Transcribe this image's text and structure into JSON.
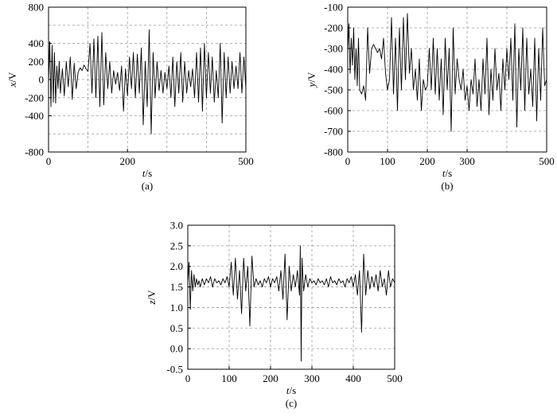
{
  "chart_data": [
    {
      "type": "line",
      "panel_label": "(a)",
      "xlabel": "t",
      "xunit": "/s",
      "ylabel": "x",
      "yunit": "/V",
      "xlim": [
        0,
        500
      ],
      "ylim": [
        -800,
        800
      ],
      "x_ticks": [
        0,
        200,
        500
      ],
      "y_ticks": [
        -800,
        -400,
        -200,
        0,
        200,
        400,
        800
      ],
      "x_grid": [
        100,
        200,
        300,
        400
      ],
      "y_grid": [
        -600,
        -400,
        -200,
        0,
        200,
        400,
        600
      ],
      "grid": true,
      "series": [
        {
          "x": [
            0,
            3,
            6,
            9,
            12,
            15,
            18,
            21,
            24,
            27,
            30,
            35,
            40,
            45,
            50,
            55,
            60,
            65,
            70,
            75,
            80,
            85,
            90,
            95,
            100,
            105,
            110,
            115,
            120,
            125,
            130,
            135,
            140,
            145,
            150,
            155,
            160,
            165,
            170,
            175,
            180,
            185,
            190,
            195,
            200,
            205,
            210,
            215,
            220,
            225,
            230,
            235,
            240,
            245,
            250,
            255,
            260,
            265,
            270,
            275,
            280,
            285,
            290,
            295,
            300,
            305,
            310,
            315,
            320,
            325,
            330,
            335,
            340,
            345,
            350,
            355,
            360,
            365,
            370,
            375,
            380,
            385,
            390,
            395,
            400,
            405,
            410,
            415,
            420,
            425,
            430,
            435,
            440,
            445,
            450,
            455,
            460,
            465,
            470,
            475,
            480,
            485,
            490,
            495,
            500
          ],
          "y": [
            -20,
            420,
            -300,
            380,
            -250,
            300,
            -260,
            150,
            -100,
            200,
            -150,
            120,
            -180,
            200,
            -80,
            250,
            -220,
            180,
            -100,
            80,
            130,
            100,
            160,
            120,
            90,
            400,
            -150,
            450,
            -200,
            480,
            -300,
            520,
            -280,
            300,
            -100,
            200,
            -150,
            100,
            -50,
            80,
            -120,
            150,
            -350,
            120,
            -180,
            250,
            -100,
            300,
            -200,
            280,
            -150,
            350,
            -500,
            200,
            -300,
            550,
            -600,
            300,
            -200,
            200,
            -120,
            100,
            -150,
            80,
            -100,
            150,
            -200,
            250,
            -300,
            200,
            -150,
            300,
            -250,
            200,
            -150,
            100,
            -80,
            120,
            -200,
            300,
            -250,
            350,
            -350,
            400,
            -200,
            300,
            -150,
            250,
            -250,
            100,
            -200,
            400,
            -480,
            300,
            -200,
            250,
            -150,
            200,
            -100,
            150,
            -100,
            300,
            -150,
            250,
            -100
          ]
        }
      ]
    },
    {
      "type": "line",
      "panel_label": "(b)",
      "xlabel": "t",
      "xunit": "/s",
      "ylabel": "y",
      "yunit": "/V",
      "xlim": [
        0,
        500
      ],
      "ylim": [
        -800,
        -100
      ],
      "x_ticks": [
        0,
        100,
        200,
        300,
        500
      ],
      "y_ticks": [
        -800,
        -700,
        -600,
        -500,
        -400,
        -300,
        -200,
        -100
      ],
      "x_grid": [
        100,
        200,
        300,
        400
      ],
      "y_grid": [
        -700,
        -600,
        -500,
        -400,
        -300,
        -200
      ],
      "grid": true,
      "series": [
        {
          "x": [
            0,
            3,
            6,
            9,
            12,
            15,
            18,
            21,
            24,
            27,
            30,
            35,
            40,
            45,
            50,
            55,
            60,
            65,
            70,
            75,
            80,
            85,
            90,
            95,
            100,
            105,
            110,
            115,
            120,
            125,
            130,
            135,
            140,
            145,
            150,
            155,
            160,
            165,
            170,
            175,
            180,
            185,
            190,
            195,
            200,
            205,
            210,
            215,
            220,
            225,
            230,
            235,
            240,
            245,
            250,
            255,
            260,
            265,
            270,
            275,
            280,
            285,
            290,
            295,
            300,
            305,
            310,
            315,
            320,
            325,
            330,
            335,
            340,
            345,
            350,
            355,
            360,
            365,
            370,
            375,
            380,
            385,
            390,
            395,
            400,
            405,
            410,
            415,
            420,
            425,
            430,
            435,
            440,
            445,
            450,
            455,
            460,
            465,
            470,
            475,
            480,
            485,
            490,
            495,
            500
          ],
          "y": [
            -320,
            -180,
            -420,
            -250,
            -380,
            -200,
            -450,
            -300,
            -480,
            -250,
            -500,
            -520,
            -480,
            -550,
            -200,
            -420,
            -300,
            -280,
            -300,
            -320,
            -300,
            -350,
            -250,
            -420,
            -500,
            -450,
            -150,
            -520,
            -250,
            -600,
            -200,
            -500,
            -150,
            -450,
            -130,
            -420,
            -300,
            -500,
            -400,
            -550,
            -350,
            -600,
            -450,
            -500,
            -480,
            -300,
            -500,
            -250,
            -520,
            -300,
            -550,
            -350,
            -620,
            -250,
            -500,
            -300,
            -700,
            -200,
            -520,
            -350,
            -450,
            -500,
            -400,
            -550,
            -480,
            -600,
            -450,
            -520,
            -350,
            -580,
            -450,
            -600,
            -350,
            -520,
            -250,
            -620,
            -400,
            -550,
            -300,
            -500,
            -420,
            -600,
            -350,
            -500,
            -300,
            -450,
            -250,
            -550,
            -180,
            -680,
            -300,
            -500,
            -200,
            -600,
            -250,
            -520,
            -400,
            -580,
            -250,
            -650,
            -300,
            -550,
            -200,
            -480,
            -450
          ]
        }
      ]
    },
    {
      "type": "line",
      "panel_label": "(c)",
      "xlabel": "t",
      "xunit": "/s",
      "ylabel": "z",
      "yunit": "/V",
      "xlim": [
        0,
        500
      ],
      "ylim": [
        -0.5,
        3.0
      ],
      "x_ticks": [
        0,
        100,
        200,
        300,
        400,
        500
      ],
      "y_ticks": [
        "-0.5",
        "0.0",
        "0.5",
        "1.0",
        "1.5",
        "2.0",
        "2.5",
        "3.0"
      ],
      "x_grid": [
        100,
        200,
        300,
        400
      ],
      "y_grid": [
        0.0,
        0.5,
        1.0,
        1.5,
        2.0,
        2.5
      ],
      "grid": true,
      "series": [
        {
          "x": [
            0,
            3,
            6,
            9,
            12,
            15,
            18,
            21,
            24,
            27,
            30,
            35,
            40,
            45,
            50,
            55,
            60,
            65,
            70,
            75,
            80,
            85,
            90,
            95,
            100,
            105,
            110,
            115,
            120,
            125,
            130,
            135,
            140,
            145,
            150,
            155,
            160,
            165,
            170,
            175,
            180,
            185,
            190,
            195,
            200,
            205,
            210,
            215,
            220,
            225,
            230,
            235,
            240,
            245,
            250,
            255,
            260,
            265,
            270,
            272,
            274,
            276,
            280,
            285,
            290,
            295,
            300,
            305,
            310,
            315,
            320,
            325,
            330,
            335,
            340,
            345,
            350,
            355,
            360,
            365,
            370,
            375,
            380,
            385,
            390,
            395,
            400,
            405,
            410,
            415,
            420,
            425,
            430,
            435,
            440,
            445,
            450,
            455,
            460,
            465,
            470,
            475,
            480,
            485,
            490,
            495,
            500
          ],
          "y": [
            1.6,
            2.1,
            0.95,
            1.9,
            1.4,
            1.8,
            1.5,
            1.7,
            1.55,
            1.65,
            1.5,
            1.7,
            1.55,
            1.7,
            1.6,
            1.75,
            1.5,
            1.7,
            1.6,
            1.65,
            1.55,
            1.7,
            1.6,
            1.75,
            1.5,
            2.1,
            1.3,
            2.2,
            1.2,
            1.9,
            0.85,
            2.2,
            1.4,
            2.0,
            0.55,
            2.25,
            1.5,
            1.7,
            1.55,
            1.65,
            1.5,
            1.7,
            1.6,
            1.75,
            1.5,
            1.7,
            1.6,
            1.75,
            1.4,
            1.9,
            1.2,
            2.3,
            0.7,
            2.0,
            1.4,
            1.8,
            1.5,
            1.9,
            1.3,
            2.5,
            -0.3,
            2.2,
            1.4,
            1.8,
            1.5,
            1.7,
            1.6,
            1.65,
            1.55,
            1.7,
            1.6,
            1.65,
            1.55,
            1.7,
            1.5,
            1.75,
            1.6,
            1.65,
            1.55,
            1.7,
            1.6,
            1.65,
            1.5,
            1.7,
            1.6,
            1.75,
            1.5,
            1.8,
            1.3,
            1.9,
            0.4,
            2.3,
            1.3,
            1.9,
            1.45,
            1.75,
            1.5,
            1.8,
            1.4,
            1.9,
            1.5,
            1.7,
            1.3,
            1.9,
            1.5,
            1.7,
            1.6
          ]
        }
      ]
    }
  ]
}
